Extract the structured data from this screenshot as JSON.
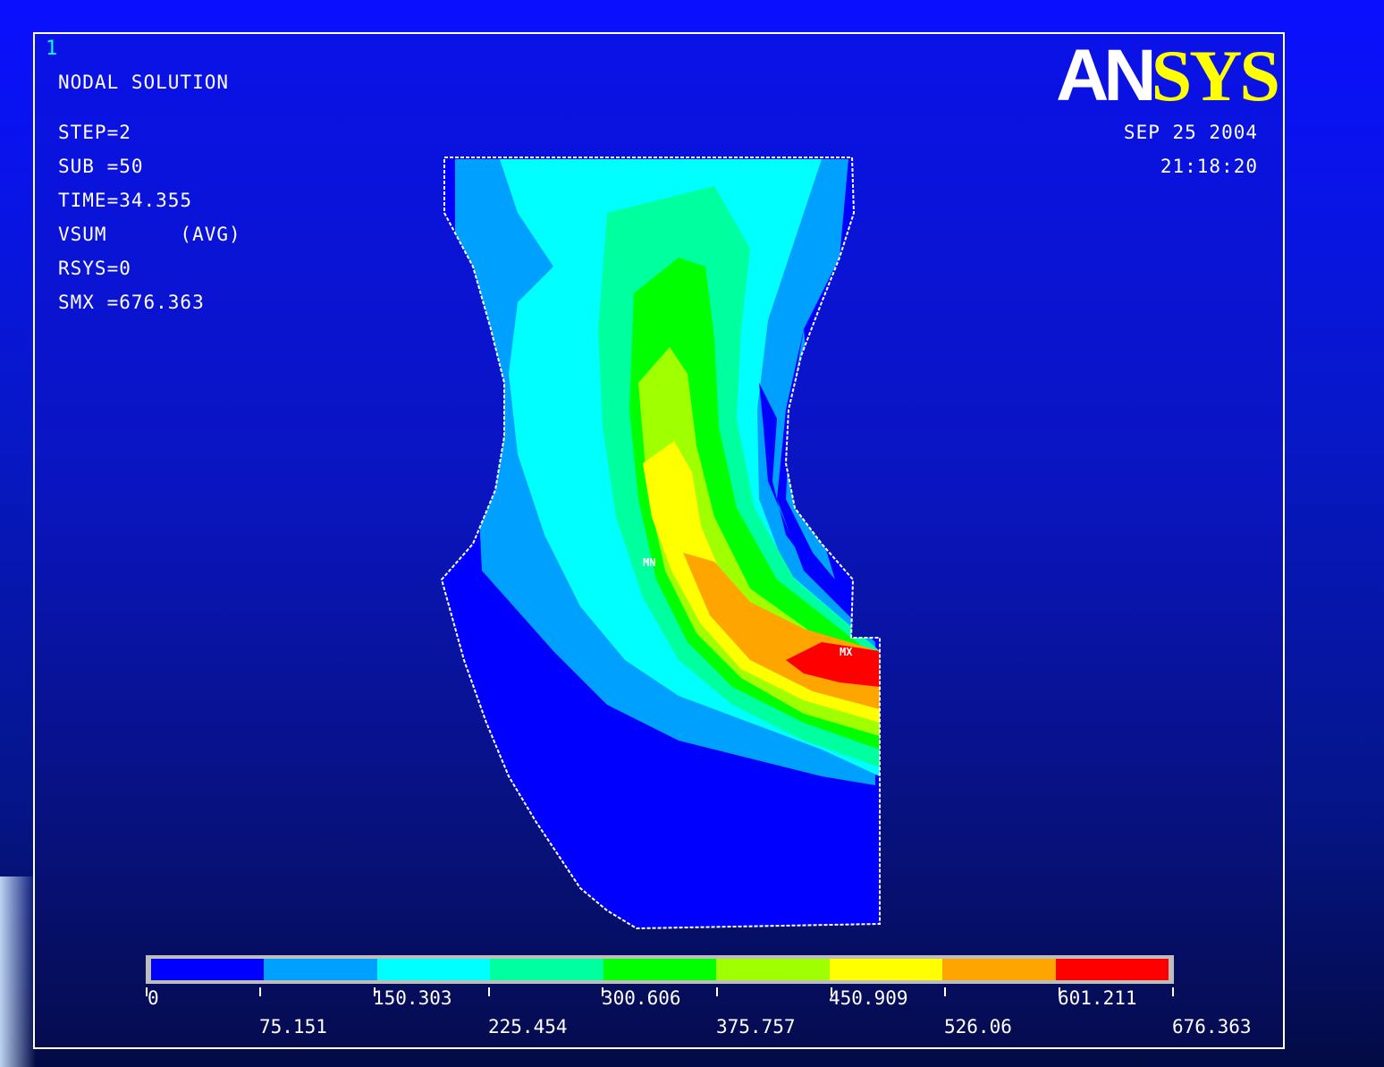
{
  "window_number": "1",
  "logo": {
    "part1": "AN",
    "part2": "SYS"
  },
  "info": {
    "title": "NODAL SOLUTION",
    "step": "STEP=2",
    "sub": "SUB =50",
    "time": "TIME=34.355",
    "vsum": "VSUM      (AVG)",
    "rsys": "RSYS=0",
    "smx": "SMX =676.363"
  },
  "date": "SEP 25 2004",
  "clock": "21:18:20",
  "markers": {
    "min": "MN",
    "max": "MX"
  },
  "legend": {
    "colors": [
      "#0000ff",
      "#00a0ff",
      "#00ffff",
      "#00ff9e",
      "#00ff00",
      "#a0ff00",
      "#ffff00",
      "#ffa500",
      "#ff0000"
    ],
    "upper_labels": [
      "0",
      "150.303",
      "300.606",
      "450.909",
      "601.211"
    ],
    "lower_labels": [
      "75.151",
      "225.454",
      "375.757",
      "526.06",
      "676.363"
    ]
  }
}
